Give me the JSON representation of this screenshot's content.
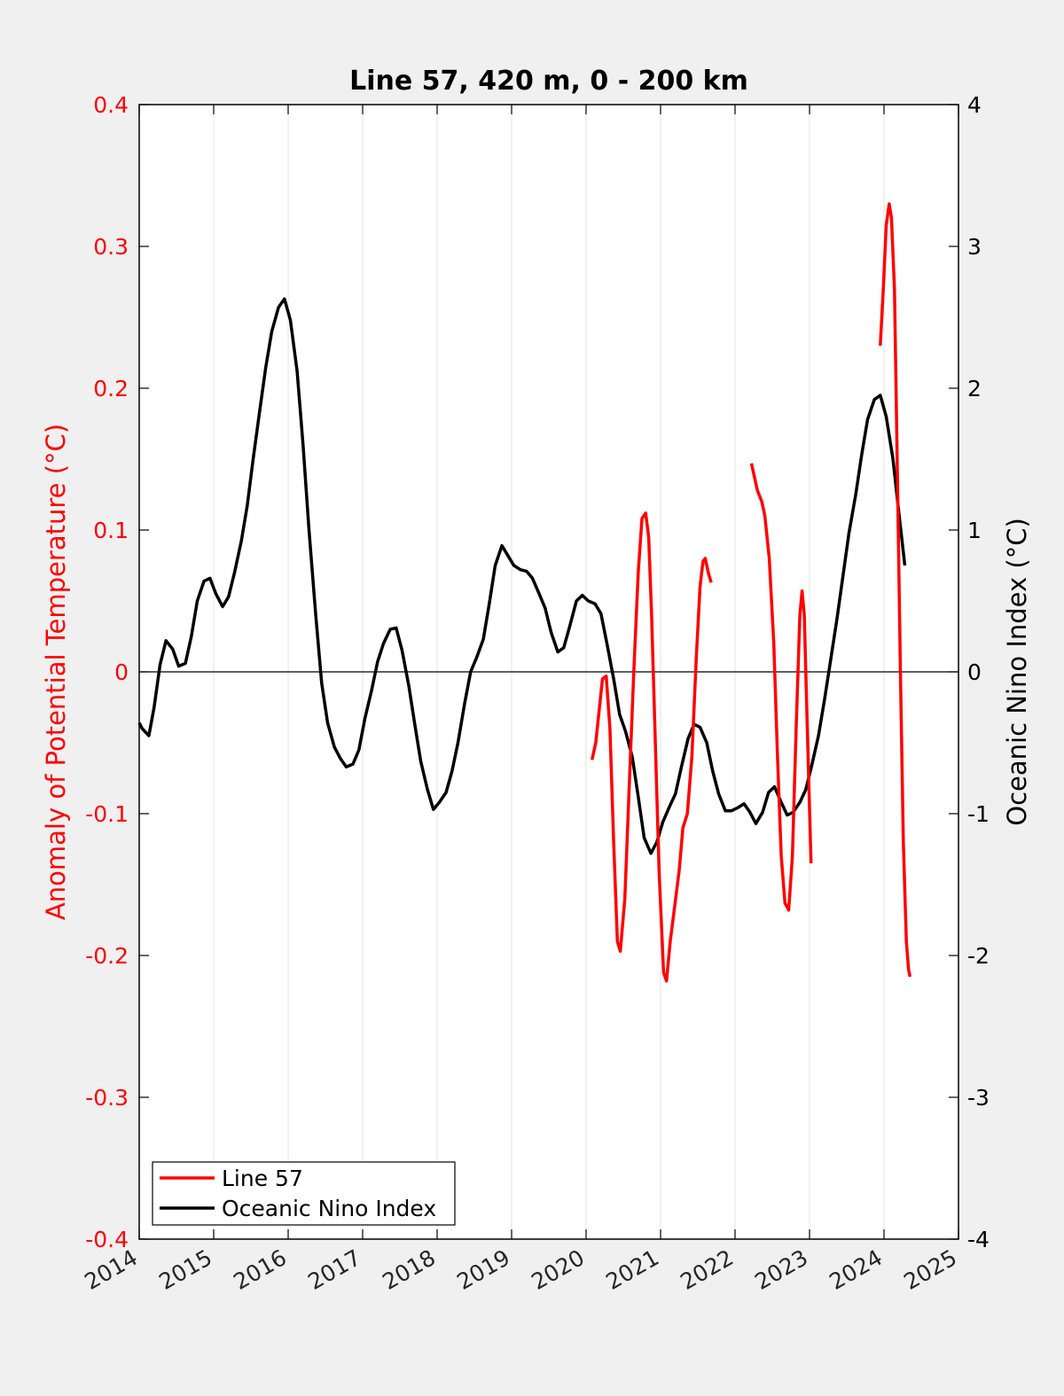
{
  "chart_data": {
    "type": "line",
    "title": "Line 57, 420 m, 0 - 200 km",
    "xlabel": "",
    "ylabel_left": "Anomaly of Potential Temperature (°C)",
    "ylabel_right": "Oceanic Nino Index (°C)",
    "xlim": [
      2014,
      2025
    ],
    "ylim_left": [
      -0.4,
      0.4
    ],
    "ylim_right": [
      -4,
      4
    ],
    "x_ticks": [
      "2014",
      "2015",
      "2016",
      "2017",
      "2018",
      "2019",
      "2020",
      "2021",
      "2022",
      "2023",
      "2024",
      "2025"
    ],
    "y_ticks_left": [
      "0.4",
      "0.3",
      "0.2",
      "0.1",
      "0",
      "-0.1",
      "-0.2",
      "-0.3",
      "-0.4"
    ],
    "y_ticks_right": [
      "4",
      "3",
      "2",
      "1",
      "0",
      "-1",
      "-2",
      "-3",
      "-4"
    ],
    "grid": "vertical",
    "legend_position": "bottom-left",
    "colors": {
      "line57": "#ff0000",
      "oni": "#000000",
      "left_axis": "#ff0000",
      "right_axis": "#000000"
    },
    "series": [
      {
        "name": "Line 57",
        "axis": "left",
        "segments": [
          [
            [
              2020.08,
              -0.062
            ],
            [
              2020.13,
              -0.05
            ],
            [
              2020.18,
              -0.025
            ],
            [
              2020.22,
              -0.005
            ],
            [
              2020.27,
              -0.003
            ],
            [
              2020.32,
              -0.04
            ],
            [
              2020.37,
              -0.12
            ],
            [
              2020.42,
              -0.19
            ],
            [
              2020.46,
              -0.197
            ],
            [
              2020.52,
              -0.16
            ],
            [
              2020.58,
              -0.08
            ],
            [
              2020.64,
              0.0
            ],
            [
              2020.7,
              0.07
            ],
            [
              2020.75,
              0.108
            ],
            [
              2020.8,
              0.112
            ],
            [
              2020.84,
              0.095
            ],
            [
              2020.88,
              0.04
            ],
            [
              2020.93,
              -0.05
            ],
            [
              2020.98,
              -0.14
            ],
            [
              2021.04,
              -0.212
            ],
            [
              2021.08,
              -0.218
            ],
            [
              2021.13,
              -0.19
            ],
            [
              2021.19,
              -0.165
            ],
            [
              2021.25,
              -0.14
            ],
            [
              2021.3,
              -0.11
            ],
            [
              2021.36,
              -0.1
            ],
            [
              2021.42,
              -0.06
            ],
            [
              2021.48,
              0.01
            ],
            [
              2021.53,
              0.06
            ],
            [
              2021.57,
              0.078
            ],
            [
              2021.6,
              0.08
            ],
            [
              2021.64,
              0.07
            ],
            [
              2021.68,
              0.063
            ]
          ],
          [
            [
              2022.22,
              0.147
            ],
            [
              2022.27,
              0.135
            ],
            [
              2022.3,
              0.128
            ],
            [
              2022.36,
              0.12
            ],
            [
              2022.4,
              0.11
            ],
            [
              2022.46,
              0.08
            ],
            [
              2022.52,
              0.02
            ],
            [
              2022.57,
              -0.06
            ],
            [
              2022.62,
              -0.13
            ],
            [
              2022.67,
              -0.163
            ],
            [
              2022.72,
              -0.168
            ],
            [
              2022.77,
              -0.13
            ],
            [
              2022.82,
              -0.04
            ],
            [
              2022.87,
              0.04
            ],
            [
              2022.9,
              0.057
            ],
            [
              2022.93,
              0.04
            ],
            [
              2022.97,
              -0.04
            ],
            [
              2023.02,
              -0.135
            ]
          ],
          [
            [
              2023.95,
              0.23
            ],
            [
              2023.99,
              0.27
            ],
            [
              2024.03,
              0.315
            ],
            [
              2024.07,
              0.33
            ],
            [
              2024.1,
              0.32
            ],
            [
              2024.14,
              0.27
            ],
            [
              2024.18,
              0.14
            ],
            [
              2024.22,
              0.0
            ],
            [
              2024.26,
              -0.12
            ],
            [
              2024.3,
              -0.19
            ],
            [
              2024.33,
              -0.21
            ],
            [
              2024.35,
              -0.215
            ]
          ]
        ]
      },
      {
        "name": "Oceanic Nino Index",
        "axis": "right",
        "points": [
          [
            2014.0,
            -0.36
          ],
          [
            2014.04,
            -0.4
          ],
          [
            2014.13,
            -0.45
          ],
          [
            2014.2,
            -0.25
          ],
          [
            2014.28,
            0.05
          ],
          [
            2014.36,
            0.22
          ],
          [
            2014.45,
            0.16
          ],
          [
            2014.53,
            0.04
          ],
          [
            2014.62,
            0.06
          ],
          [
            2014.7,
            0.25
          ],
          [
            2014.78,
            0.5
          ],
          [
            2014.87,
            0.64
          ],
          [
            2014.95,
            0.66
          ],
          [
            2015.03,
            0.55
          ],
          [
            2015.12,
            0.46
          ],
          [
            2015.2,
            0.53
          ],
          [
            2015.28,
            0.7
          ],
          [
            2015.37,
            0.92
          ],
          [
            2015.45,
            1.17
          ],
          [
            2015.53,
            1.5
          ],
          [
            2015.62,
            1.85
          ],
          [
            2015.7,
            2.15
          ],
          [
            2015.78,
            2.4
          ],
          [
            2015.87,
            2.57
          ],
          [
            2015.95,
            2.63
          ],
          [
            2016.03,
            2.48
          ],
          [
            2016.12,
            2.12
          ],
          [
            2016.2,
            1.6
          ],
          [
            2016.28,
            1.0
          ],
          [
            2016.37,
            0.4
          ],
          [
            2016.45,
            -0.08
          ],
          [
            2016.53,
            -0.36
          ],
          [
            2016.62,
            -0.53
          ],
          [
            2016.7,
            -0.61
          ],
          [
            2016.78,
            -0.67
          ],
          [
            2016.87,
            -0.65
          ],
          [
            2016.95,
            -0.55
          ],
          [
            2017.03,
            -0.33
          ],
          [
            2017.12,
            -0.13
          ],
          [
            2017.2,
            0.07
          ],
          [
            2017.28,
            0.2
          ],
          [
            2017.37,
            0.3
          ],
          [
            2017.45,
            0.31
          ],
          [
            2017.53,
            0.15
          ],
          [
            2017.62,
            -0.1
          ],
          [
            2017.7,
            -0.37
          ],
          [
            2017.78,
            -0.63
          ],
          [
            2017.87,
            -0.83
          ],
          [
            2017.95,
            -0.97
          ],
          [
            2018.03,
            -0.92
          ],
          [
            2018.12,
            -0.85
          ],
          [
            2018.2,
            -0.7
          ],
          [
            2018.28,
            -0.5
          ],
          [
            2018.37,
            -0.22
          ],
          [
            2018.45,
            0.0
          ],
          [
            2018.53,
            0.1
          ],
          [
            2018.62,
            0.23
          ],
          [
            2018.7,
            0.48
          ],
          [
            2018.78,
            0.75
          ],
          [
            2018.87,
            0.89
          ],
          [
            2018.95,
            0.82
          ],
          [
            2019.03,
            0.75
          ],
          [
            2019.12,
            0.72
          ],
          [
            2019.2,
            0.71
          ],
          [
            2019.28,
            0.66
          ],
          [
            2019.37,
            0.55
          ],
          [
            2019.45,
            0.45
          ],
          [
            2019.53,
            0.28
          ],
          [
            2019.62,
            0.14
          ],
          [
            2019.7,
            0.17
          ],
          [
            2019.78,
            0.32
          ],
          [
            2019.87,
            0.5
          ],
          [
            2019.95,
            0.54
          ],
          [
            2020.03,
            0.5
          ],
          [
            2020.12,
            0.48
          ],
          [
            2020.2,
            0.41
          ],
          [
            2020.28,
            0.2
          ],
          [
            2020.37,
            -0.05
          ],
          [
            2020.45,
            -0.3
          ],
          [
            2020.53,
            -0.42
          ],
          [
            2020.62,
            -0.6
          ],
          [
            2020.7,
            -0.88
          ],
          [
            2020.78,
            -1.17
          ],
          [
            2020.87,
            -1.28
          ],
          [
            2020.95,
            -1.2
          ],
          [
            2021.03,
            -1.06
          ],
          [
            2021.12,
            -0.95
          ],
          [
            2021.2,
            -0.86
          ],
          [
            2021.28,
            -0.67
          ],
          [
            2021.37,
            -0.47
          ],
          [
            2021.45,
            -0.37
          ],
          [
            2021.53,
            -0.39
          ],
          [
            2021.62,
            -0.5
          ],
          [
            2021.7,
            -0.7
          ],
          [
            2021.78,
            -0.86
          ],
          [
            2021.87,
            -0.98
          ],
          [
            2021.95,
            -0.98
          ],
          [
            2022.03,
            -0.96
          ],
          [
            2022.12,
            -0.93
          ],
          [
            2022.2,
            -0.99
          ],
          [
            2022.28,
            -1.07
          ],
          [
            2022.37,
            -0.99
          ],
          [
            2022.45,
            -0.85
          ],
          [
            2022.53,
            -0.81
          ],
          [
            2022.62,
            -0.92
          ],
          [
            2022.7,
            -1.01
          ],
          [
            2022.78,
            -0.99
          ],
          [
            2022.87,
            -0.92
          ],
          [
            2022.95,
            -0.83
          ],
          [
            2023.03,
            -0.66
          ],
          [
            2023.12,
            -0.45
          ],
          [
            2023.2,
            -0.2
          ],
          [
            2023.28,
            0.07
          ],
          [
            2023.37,
            0.38
          ],
          [
            2023.45,
            0.68
          ],
          [
            2023.53,
            0.98
          ],
          [
            2023.62,
            1.25
          ],
          [
            2023.7,
            1.53
          ],
          [
            2023.78,
            1.78
          ],
          [
            2023.87,
            1.92
          ],
          [
            2023.95,
            1.95
          ],
          [
            2024.03,
            1.8
          ],
          [
            2024.12,
            1.5
          ],
          [
            2024.2,
            1.12
          ],
          [
            2024.28,
            0.75
          ]
        ]
      }
    ]
  }
}
